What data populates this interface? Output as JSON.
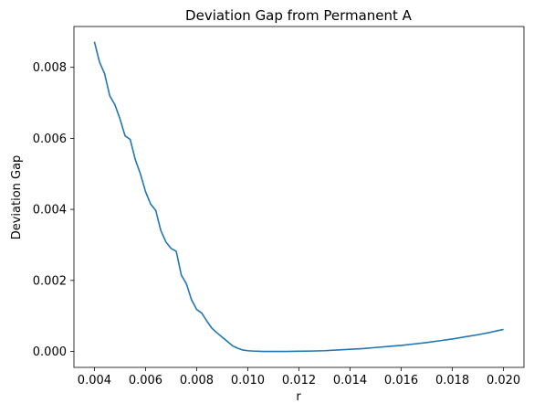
{
  "chart_data": {
    "type": "line",
    "title": "Deviation Gap from Permanent A",
    "xlabel": "r",
    "ylabel": "Deviation Gap",
    "xlim": [
      0.0032,
      0.0208
    ],
    "ylim": [
      -0.00045,
      0.00915
    ],
    "xticks": [
      0.004,
      0.006,
      0.008,
      0.01,
      0.012,
      0.014,
      0.016,
      0.018,
      0.02
    ],
    "xtick_labels": [
      "0.004",
      "0.006",
      "0.008",
      "0.010",
      "0.012",
      "0.014",
      "0.016",
      "0.018",
      "0.020"
    ],
    "yticks": [
      0.0,
      0.002,
      0.004,
      0.006,
      0.008
    ],
    "ytick_labels": [
      "0.000",
      "0.002",
      "0.004",
      "0.006",
      "0.008"
    ],
    "grid": false,
    "colors": {
      "line": "#1f77b4"
    },
    "series": [
      {
        "x": [
          0.004,
          0.0042,
          0.0044,
          0.0046,
          0.0048,
          0.005,
          0.0052,
          0.0054,
          0.0056,
          0.0058,
          0.006,
          0.0062,
          0.0064,
          0.0066,
          0.0068,
          0.007,
          0.0072,
          0.0074,
          0.0076,
          0.0078,
          0.008,
          0.0082,
          0.0084,
          0.0086,
          0.0088,
          0.009,
          0.0092,
          0.0094,
          0.0096,
          0.0098,
          0.01,
          0.0102,
          0.0104,
          0.0106,
          0.0108,
          0.011,
          0.0115,
          0.012,
          0.0125,
          0.013,
          0.0135,
          0.014,
          0.0145,
          0.015,
          0.0155,
          0.016,
          0.0165,
          0.017,
          0.0175,
          0.018,
          0.0185,
          0.019,
          0.0195,
          0.02
        ],
        "y": [
          0.00872,
          0.00815,
          0.00782,
          0.0072,
          0.00695,
          0.00655,
          0.00607,
          0.00597,
          0.0054,
          0.005,
          0.0045,
          0.00415,
          0.00397,
          0.0034,
          0.00308,
          0.0029,
          0.00282,
          0.00215,
          0.0019,
          0.00145,
          0.00118,
          0.00108,
          0.00085,
          0.00065,
          0.00052,
          0.0004,
          0.00028,
          0.00016,
          9e-05,
          4e-05,
          2e-05,
          1e-05,
          5e-06,
          0.0,
          0.0,
          0.0,
          0.0,
          5e-06,
          1e-05,
          2e-05,
          4e-05,
          6e-05,
          8e-05,
          0.00011,
          0.00014,
          0.00017,
          0.00021,
          0.00025,
          0.0003,
          0.00035,
          0.00041,
          0.00047,
          0.00054,
          0.00062
        ]
      }
    ]
  }
}
